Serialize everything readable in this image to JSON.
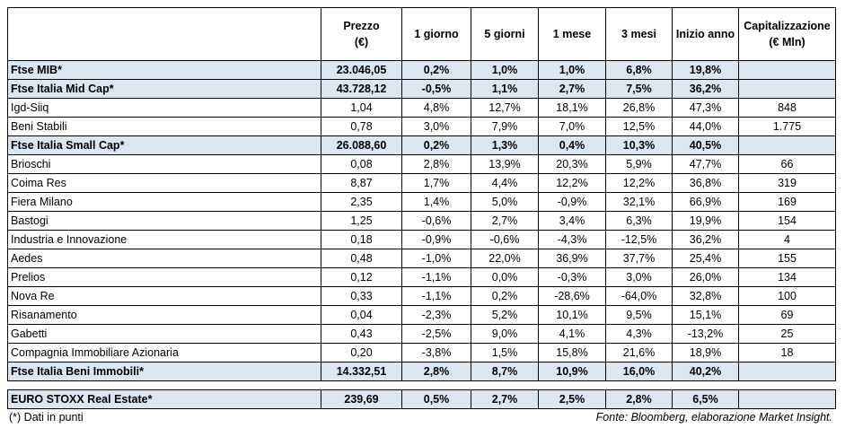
{
  "table": {
    "header": [
      [
        "Prezzo",
        "(€)"
      ],
      [
        "1 giorno"
      ],
      [
        "5 giorni"
      ],
      [
        "1 mese"
      ],
      [
        "3 mesi"
      ],
      [
        "Inizio anno"
      ],
      [
        "Capitalizzazione",
        "(€ Mln)"
      ]
    ],
    "rows": [
      {
        "name": "Ftse MIB*",
        "index": true,
        "values": [
          "23.046,05",
          "0,2%",
          "1,0%",
          "1,0%",
          "6,8%",
          "19,8%"
        ]
      },
      {
        "name": "Ftse Italia Mid Cap*",
        "index": true,
        "values": [
          "43.728,12",
          "-0,5%",
          "1,1%",
          "2,7%",
          "7,5%",
          "36,2%"
        ]
      },
      {
        "name": "Igd-Siiq",
        "values": [
          "1,04",
          "4,8%",
          "12,7%",
          "18,1%",
          "26,8%",
          "47,3%",
          "848"
        ]
      },
      {
        "name": "Beni Stabili",
        "values": [
          "0,78",
          "3,0%",
          "7,9%",
          "7,0%",
          "12,5%",
          "44,0%",
          "1.775"
        ]
      },
      {
        "name": "Ftse Italia Small Cap*",
        "index": true,
        "values": [
          "26.088,60",
          "0,2%",
          "1,3%",
          "0,4%",
          "10,3%",
          "40,5%"
        ]
      },
      {
        "name": "Brioschi",
        "values": [
          "0,08",
          "2,8%",
          "13,9%",
          "20,3%",
          "5,9%",
          "47,7%",
          "66"
        ]
      },
      {
        "name": "Coima Res",
        "values": [
          "8,87",
          "1,7%",
          "4,4%",
          "12,2%",
          "12,2%",
          "36,8%",
          "319"
        ]
      },
      {
        "name": "Fiera Milano",
        "values": [
          "2,35",
          "1,4%",
          "5,0%",
          "-0,9%",
          "32,1%",
          "66,9%",
          "169"
        ]
      },
      {
        "name": "Bastogi",
        "values": [
          "1,25",
          "-0,6%",
          "2,7%",
          "3,4%",
          "6,3%",
          "19,9%",
          "154"
        ]
      },
      {
        "name": "Industria e Innovazione",
        "values": [
          "0,18",
          "-0,9%",
          "-0,6%",
          "-4,3%",
          "-12,5%",
          "36,2%",
          "4"
        ]
      },
      {
        "name": "Aedes",
        "values": [
          "0,48",
          "-1,0%",
          "22,0%",
          "36,9%",
          "37,7%",
          "25,4%",
          "155"
        ]
      },
      {
        "name": "Prelios",
        "values": [
          "0,12",
          "-1,1%",
          "0,0%",
          "-0,3%",
          "3,0%",
          "26,0%",
          "134"
        ]
      },
      {
        "name": "Nova Re",
        "values": [
          "0,33",
          "-1,1%",
          "0,2%",
          "-28,6%",
          "-64,0%",
          "32,8%",
          "100"
        ]
      },
      {
        "name": "Risanamento",
        "values": [
          "0,04",
          "-2,3%",
          "5,2%",
          "10,1%",
          "9,5%",
          "15,1%",
          "69"
        ]
      },
      {
        "name": "Gabetti",
        "values": [
          "0,43",
          "-2,5%",
          "9,0%",
          "4,1%",
          "4,3%",
          "-13,2%",
          "25"
        ]
      },
      {
        "name": "Compagnia Immobiliare Azionaria",
        "values": [
          "0,20",
          "-3,8%",
          "1,5%",
          "15,8%",
          "21,6%",
          "18,9%",
          "18"
        ]
      },
      {
        "name": "Ftse Italia Beni Immobili*",
        "index": true,
        "values": [
          "14.332,51",
          "2,8%",
          "8,7%",
          "10,9%",
          "16,0%",
          "40,2%"
        ]
      }
    ],
    "benchmark": {
      "name": "EURO STOXX Real Estate*",
      "index": true,
      "values": [
        "239,69",
        "0,5%",
        "2,7%",
        "2,5%",
        "2,8%",
        "6,5%"
      ]
    }
  },
  "footer": {
    "note": "(*) Dati in punti",
    "source": "Fonte: Bloomberg, elaborazione Market Insight."
  }
}
